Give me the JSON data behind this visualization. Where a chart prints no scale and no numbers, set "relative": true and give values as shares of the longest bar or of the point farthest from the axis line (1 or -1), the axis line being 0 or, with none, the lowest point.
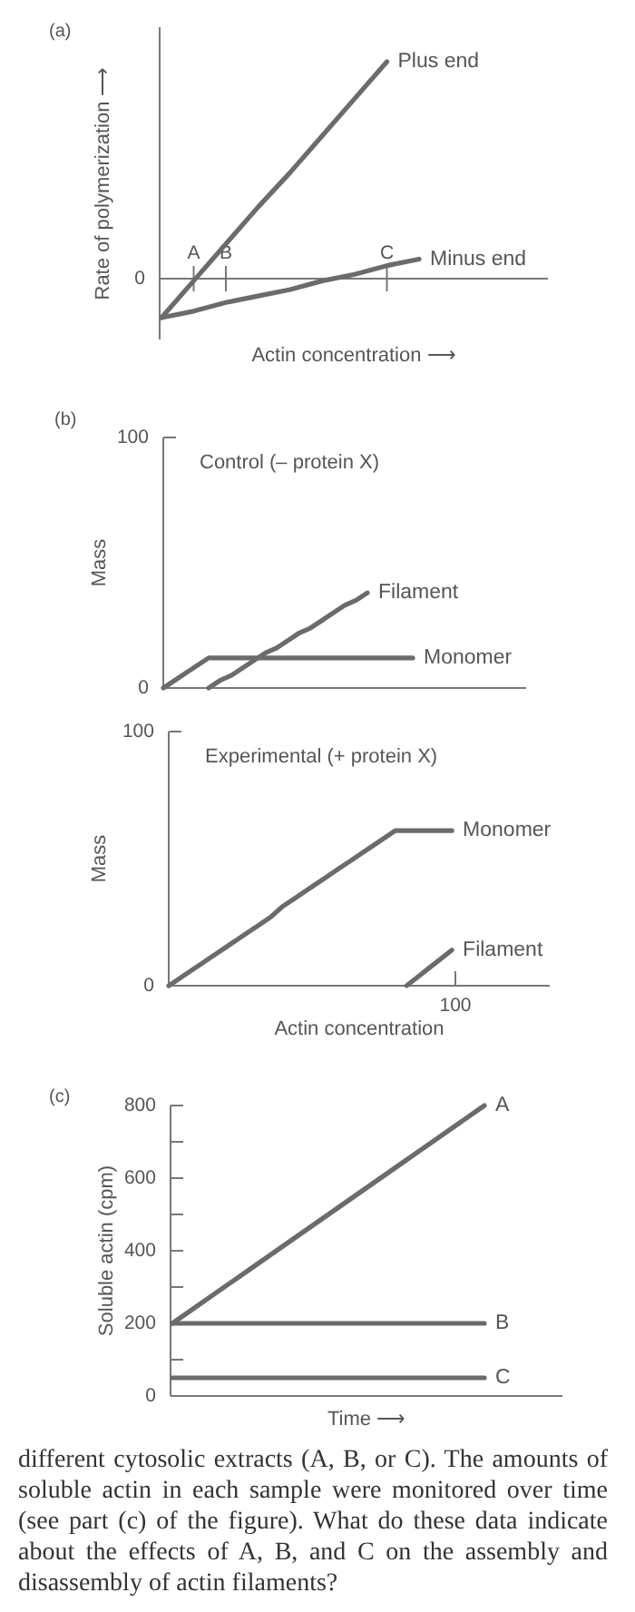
{
  "chart_data": [
    {
      "type": "line",
      "title": "(a)",
      "xlabel": "Actin concentration ⟶",
      "ylabel": "Rate of polymerization ⟶",
      "relative": true,
      "categories": [
        null,
        "A",
        "B",
        null,
        null,
        null,
        null,
        "C",
        null,
        null,
        null,
        null,
        null
      ],
      "annotations": [
        "0"
      ],
      "series": [
        {
          "name": "Plus end",
          "color": "#6b6b6b",
          "values": [
            -0.18,
            -0.01,
            0.16,
            0.33,
            0.49,
            0.66,
            0.83,
            1,
            null,
            null,
            null,
            null,
            null
          ]
        },
        {
          "name": "Minus end",
          "color": "#6b6b6b",
          "values": [
            -0.18,
            -0.15,
            -0.11,
            -0.08,
            -0.05,
            -0.01,
            0.02,
            0.06,
            0.09,
            null,
            null,
            null,
            null
          ]
        }
      ]
    },
    {
      "type": "line",
      "title": "(b)",
      "subtitle": "Control (– protein X)",
      "ylabel": "Mass",
      "categories": [
        null,
        null,
        null,
        null,
        null,
        null,
        null,
        null,
        null,
        null,
        null,
        null,
        null,
        null,
        null,
        null,
        null,
        null,
        null,
        null,
        null,
        null,
        null,
        null,
        null,
        null,
        null,
        null,
        null,
        null,
        null,
        null,
        null
      ],
      "ylim": [
        0,
        100
      ],
      "yticks": [
        0,
        100
      ],
      "series": [
        {
          "name": "Filament",
          "color": "#6b6b6b",
          "values": [
            null,
            null,
            null,
            null,
            0,
            3,
            5,
            8,
            11,
            14,
            16,
            19,
            22,
            24,
            27,
            30,
            33,
            35,
            38,
            null,
            null,
            null,
            null,
            null,
            null,
            null,
            null,
            null,
            null,
            null,
            null,
            null,
            null
          ]
        },
        {
          "name": "Monomer",
          "color": "#6b6b6b",
          "values": [
            0,
            3,
            6,
            9,
            12,
            12,
            12,
            12,
            12,
            12,
            12,
            12,
            12,
            12,
            12,
            12,
            12,
            12,
            12,
            12,
            12,
            12,
            12,
            null,
            null,
            null,
            null,
            null,
            null,
            null,
            null,
            null,
            null
          ]
        }
      ]
    },
    {
      "type": "line",
      "subtitle": "Experimental (+ protein X)",
      "ylabel": "Mass",
      "xlabel": "Actin concentration",
      "categories": [
        null,
        null,
        null,
        null,
        null,
        null,
        null,
        null,
        null,
        null,
        null,
        null,
        null,
        null,
        null,
        null,
        null,
        null,
        null,
        null,
        null,
        null,
        null,
        null,
        null,
        null,
        null,
        null,
        null,
        null,
        null,
        null,
        null,
        null
      ],
      "ylim": [
        0,
        100
      ],
      "yticks": [
        0,
        100
      ],
      "annotations": [
        "100"
      ],
      "series": [
        {
          "name": "Monomer",
          "color": "#6b6b6b",
          "values": [
            0,
            3,
            6,
            9,
            12,
            15,
            18,
            21,
            24,
            27,
            31,
            34,
            37,
            40,
            43,
            46,
            49,
            52,
            55,
            58,
            61,
            61,
            61,
            61,
            61,
            61,
            null,
            null,
            null,
            null,
            null,
            null,
            null,
            null
          ]
        },
        {
          "name": "Filament",
          "color": "#6b6b6b",
          "values": [
            null,
            null,
            null,
            null,
            null,
            null,
            null,
            null,
            null,
            null,
            null,
            null,
            null,
            null,
            null,
            null,
            null,
            null,
            null,
            null,
            null,
            0,
            3.5,
            7,
            10.5,
            14,
            null,
            null,
            null,
            null,
            null,
            null,
            null,
            null
          ]
        }
      ]
    },
    {
      "type": "line",
      "title": "(c)",
      "ylabel": "Soluble actin (cpm)",
      "xlabel": "Time ⟶",
      "categories": [
        null,
        null,
        null,
        null,
        null,
        null
      ],
      "ylim": [
        0,
        800
      ],
      "yticks": [
        0,
        {
          "value": 100,
          "label": null
        },
        200,
        {
          "value": 300,
          "label": null
        },
        400,
        {
          "value": 500,
          "label": null
        },
        600,
        {
          "value": 700,
          "label": null
        },
        800
      ],
      "annotations": [
        "different cytosolic extracts (A, B, or C). The amounts of soluble actin in each sample were monitored over time (see part (c) of the figure). What do these data indicate about the effects of A, B, and C on the assembly and disassembly of actin filaments?"
      ],
      "series": [
        {
          "name": "A",
          "color": "#6b6b6b",
          "values": [
            200,
            350,
            500,
            650,
            800,
            null
          ]
        },
        {
          "name": "B",
          "color": "#6b6b6b",
          "values": [
            200,
            200,
            200,
            200,
            200,
            null
          ]
        },
        {
          "name": "C",
          "color": "#6b6b6b",
          "values": [
            50,
            50,
            50,
            50,
            50,
            null
          ]
        }
      ]
    }
  ]
}
